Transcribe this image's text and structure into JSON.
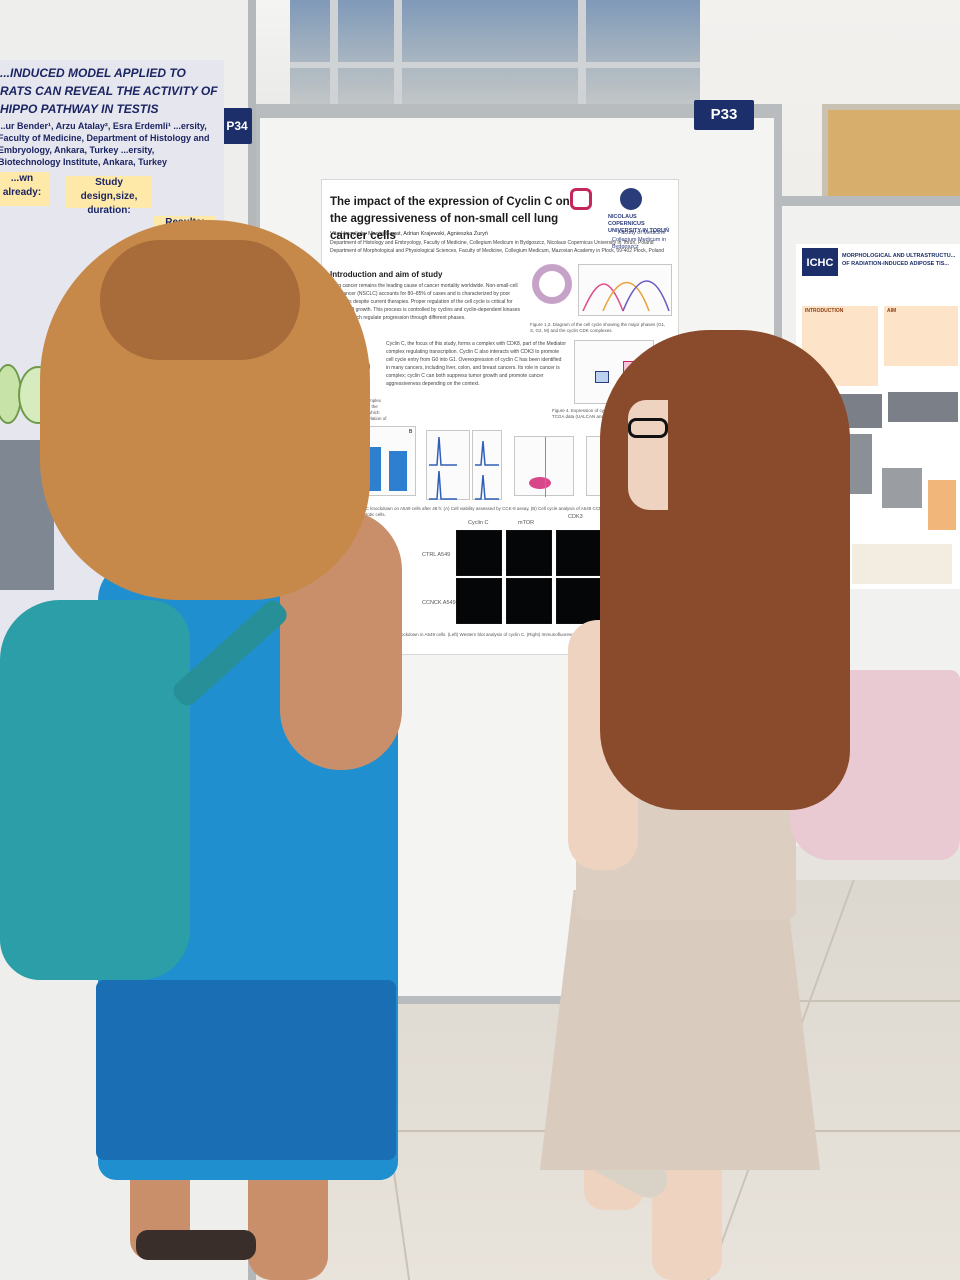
{
  "scene": {
    "description_tags": [
      "poster-session",
      "two-people",
      "conference-hall"
    ]
  },
  "panels": {
    "left_tag": "P34",
    "center_tag": "P33"
  },
  "poster_p33": {
    "title": "The impact of the expression of Cyclin C on the aggressiveness of non-small cell lung cancer cells",
    "authors": "Vita Havryliuk , Maciej Gagat, Adrian Krajewski, Agnieszka Żuryń",
    "affiliation_1": "Department of Histology and Embryology, Faculty of Medicine, Collegium Medicum in Bydgoszcz, Nicolaus Copernicus University in Toruń, Poland",
    "affiliation_2": "Department of Morphological and Physiological Sciences, Faculty of Medicine, Collegium Medicum, Mazovian Academy in Płock, 09-402 Płock, Poland",
    "intro_heading": "Introduction and aim of study",
    "intro_text": "Lung cancer remains the leading cause of cancer mortality worldwide. Non-small-cell lung cancer (NSCLC) accounts for 80–85% of cases and is characterized by poor prognosis despite current therapies. Proper regulation of the cell cycle is critical for normal cell growth. This process is controlled by cyclins and cyclin-dependent kinases (CDKs), which regulate progression through different phases.",
    "body_text": "Cyclin C, the focus of this study, forms a complex with CDK8, part of the Mediator complex regulating transcription. Cyclin C also interacts with CDK3 to promote cell cycle entry from G0 into G1. Overexpression of cyclin C has been identified in many cancers, including liver, colon, and breast cancers. Its role in cancer is complex; cyclin C can both suppress tumor growth and promote cancer aggressiveness depending on the context.",
    "fig_caption_1": "Figure 1,2. Diagram of the cell cycle showing the major phases (G1, S, G2, M) and the cyclin CDK complexes.",
    "fig_caption_4": "Figure 4. Expression of cyclin C (CCNC) in LU based on TCGA data (UALCAN analysis).",
    "fig_caption_3": "Cyclin C forms a complex with CDK8, a part of the Mediator complex, which regulates phosphorylation of RNA polymerase II.",
    "fig_caption_5": "CCNC knockdown on A549 cells after 48 h: (A) Cell viability assessed by CCK-8 assay, (B) Cell cycle analysis of A549 CCNC-K and control: (C) viable and apoptotic cells.",
    "micro_col_labels": [
      "Cyclin C",
      "mTOR",
      "CDK3"
    ],
    "micro_row_labels": [
      "CTRL A549",
      "CCNCK A549"
    ],
    "micro_caption": "CCNC knockdown in A549 cells. (Left) Western blot analysis of cyclin C. (Right) Immunofluorescence results of cyclin C.",
    "logo_text_1": "NICOLAUS COPERNICUS UNIVERSITY IN TORUŃ",
    "logo_text_2": "Faculty of Medicine",
    "logo_text_3": "Collegium Medicum in Bydgoszcz",
    "chart_bar_label_left": "A",
    "chart_bar_label_right": "B"
  },
  "poster_p34": {
    "title": "...INDUCED MODEL APPLIED TO RATS CAN REVEAL THE ACTIVITY OF HIPPO PATHWAY IN TESTIS",
    "authors": "...ur Bender¹, Arzu Atalay², Esra Erdemli¹ ...ersity, Faculty of Medicine, Department of Histology and Embryology, Ankara, Turkey ...ersity, Biotechnology Institute, Ankara, Turkey",
    "box_known": "...wn already:",
    "box_design": "Study design,size, duration:",
    "box_results": "Results:"
  },
  "poster_right": {
    "logo": "ICHC",
    "title": "MORPHOLOGICAL AND ULTRASTRUCTU... OF RADIATION-INDUCED ADIPOSE TIS...",
    "section_1": "INTRODUCTION",
    "section_2": "AIM"
  },
  "colors": {
    "panel_tag_bg": "#1c2f6b",
    "dress_blue": "#1f8fd0",
    "backpack_teal": "#2b9ea8",
    "skirt_beige": "#d9cbbd",
    "bag_pink": "#e9c9d2",
    "hair_blonde": "#c7894a",
    "hair_brown": "#8a4a2c"
  }
}
